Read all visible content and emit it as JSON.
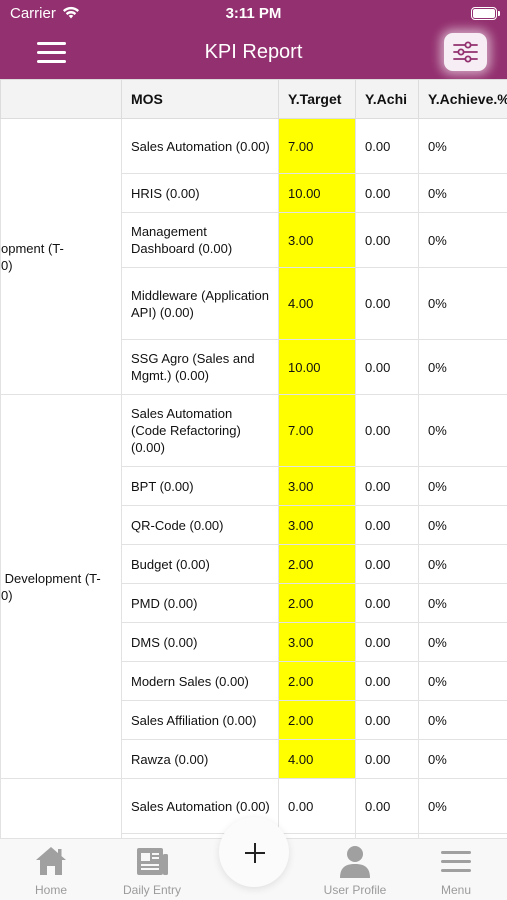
{
  "status_bar": {
    "carrier": "Carrier",
    "time": "3:11 PM"
  },
  "header": {
    "title": "KPI Report"
  },
  "table": {
    "columns": [
      "MOS",
      "Y.Target",
      "Y.Achi",
      "Y.Achieve.%"
    ],
    "groups": [
      {
        "label": "opment (T-\n0)",
        "rows": [
          {
            "mos": "Sales Automation (0.00)",
            "target": "7.00",
            "achi": "0.00",
            "pct": "0%",
            "hl": true
          },
          {
            "mos": "HRIS (0.00)",
            "target": "10.00",
            "achi": "0.00",
            "pct": "0%",
            "hl": true
          },
          {
            "mos": "Management Dashboard (0.00)",
            "target": "3.00",
            "achi": "0.00",
            "pct": "0%",
            "hl": true
          },
          {
            "mos": "Middleware (Application API) (0.00)",
            "target": "4.00",
            "achi": "0.00",
            "pct": "0%",
            "hl": true
          },
          {
            "mos": "SSG Agro (Sales and Mgmt.) (0.00)",
            "target": "10.00",
            "achi": "0.00",
            "pct": "0%",
            "hl": true
          }
        ]
      },
      {
        "label": " Development (T-\n0)",
        "rows": [
          {
            "mos": "Sales Automation (Code Refactoring) (0.00)",
            "target": "7.00",
            "achi": "0.00",
            "pct": "0%",
            "hl": true
          },
          {
            "mos": "BPT (0.00)",
            "target": "3.00",
            "achi": "0.00",
            "pct": "0%",
            "hl": true
          },
          {
            "mos": "QR-Code (0.00)",
            "target": "3.00",
            "achi": "0.00",
            "pct": "0%",
            "hl": true
          },
          {
            "mos": "Budget (0.00)",
            "target": "2.00",
            "achi": "0.00",
            "pct": "0%",
            "hl": true
          },
          {
            "mos": "PMD (0.00)",
            "target": "2.00",
            "achi": "0.00",
            "pct": "0%",
            "hl": true
          },
          {
            "mos": "DMS (0.00)",
            "target": "3.00",
            "achi": "0.00",
            "pct": "0%",
            "hl": true
          },
          {
            "mos": "Modern Sales (0.00)",
            "target": "2.00",
            "achi": "0.00",
            "pct": "0%",
            "hl": true
          },
          {
            "mos": "Sales Affiliation (0.00)",
            "target": "2.00",
            "achi": "0.00",
            "pct": "0%",
            "hl": true
          },
          {
            "mos": "Rawza (0.00)",
            "target": "4.00",
            "achi": "0.00",
            "pct": "0%",
            "hl": true
          }
        ]
      },
      {
        "label": "",
        "rows": [
          {
            "mos": "Sales Automation (0.00)",
            "target": "0.00",
            "achi": "0.00",
            "pct": "0%",
            "hl": false
          },
          {
            "mos": "",
            "target": "",
            "achi": "",
            "pct": "",
            "hl": false
          }
        ]
      }
    ]
  },
  "tabbar": {
    "home": "Home",
    "daily_entry": "Daily Entry",
    "user_profile": "User Profile",
    "menu": "Menu"
  },
  "colors": {
    "header": "#93306f",
    "highlight": "#ffff00",
    "tab_icon": "#a0a0a0"
  },
  "icons": {
    "hamburger": "hamburger-icon",
    "filter": "sliders-icon",
    "home": "home-icon",
    "daily_entry": "newspaper-icon",
    "user_profile": "user-icon",
    "menu": "menu-icon",
    "add": "plus-icon"
  }
}
